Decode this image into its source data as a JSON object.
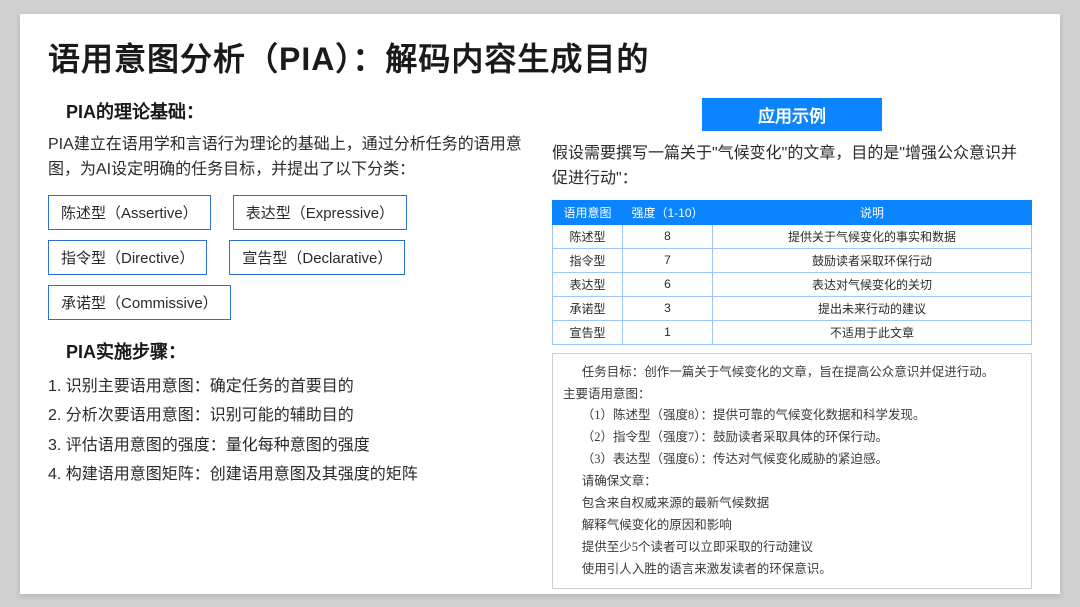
{
  "title": "语用意图分析（PIA）：解码内容生成目的",
  "left": {
    "foundation_heading": "PIA的理论基础：",
    "foundation_body": "PIA建立在语用学和言语行为理论的基础上，通过分析任务的语用意图，为AI设定明确的任务目标，并提出了以下分类：",
    "categories": [
      "陈述型（Assertive）",
      "表达型（Expressive）",
      "指令型（Directive）",
      "宣告型（Declarative）",
      "承诺型（Commissive）"
    ],
    "steps_heading": "PIA实施步骤：",
    "steps": [
      "1. 识别主要语用意图：确定任务的首要目的",
      "2. 分析次要语用意图：识别可能的辅助目的",
      "3. 评估语用意图的强度：量化每种意图的强度",
      "4. 构建语用意图矩阵：创建语用意图及其强度的矩阵"
    ]
  },
  "right": {
    "example_heading": "应用示例",
    "example_intro": "假设需要撰写一篇关于\"气候变化\"的文章，目的是\"增强公众意识并促进行动\"：",
    "table": {
      "headers": [
        "语用意图",
        "强度（1-10）",
        "说明"
      ],
      "rows": [
        [
          "陈述型",
          "8",
          "提供关于气候变化的事实和数据"
        ],
        [
          "指令型",
          "7",
          "鼓励读者采取环保行动"
        ],
        [
          "表达型",
          "6",
          "表达对气候变化的关切"
        ],
        [
          "承诺型",
          "3",
          "提出未来行动的建议"
        ],
        [
          "宣告型",
          "1",
          "不适用于此文章"
        ]
      ]
    },
    "detail": {
      "goal": "任务目标：创作一篇关于气候变化的文章，旨在提高公众意识并促进行动。",
      "main_label": "主要语用意图：",
      "items": [
        "（1）陈述型（强度8）：提供可靠的气候变化数据和科学发现。",
        "（2）指令型（强度7）：鼓励读者采取具体的环保行动。",
        "（3）表达型（强度6）：传达对气候变化威胁的紧迫感。"
      ],
      "ensure": "请确保文章：",
      "ensures": [
        "包含来自权威来源的最新气候数据",
        "解释气候变化的原因和影响",
        "提供至少5个读者可以立即采取的行动建议",
        "使用引人入胜的语言来激发读者的环保意识。"
      ]
    }
  },
  "style": {
    "accent": "#0a84ff",
    "border_blue": "#2a6fd6",
    "table_border": "#9ec7ff",
    "detail_border": "#cfcfcf",
    "bg": "#ffffff",
    "page_bg": "#d0d0d0",
    "title_fontsize": 32,
    "body_fontsize": 16,
    "table_fontsize": 12,
    "detail_fontsize": 12.5
  }
}
